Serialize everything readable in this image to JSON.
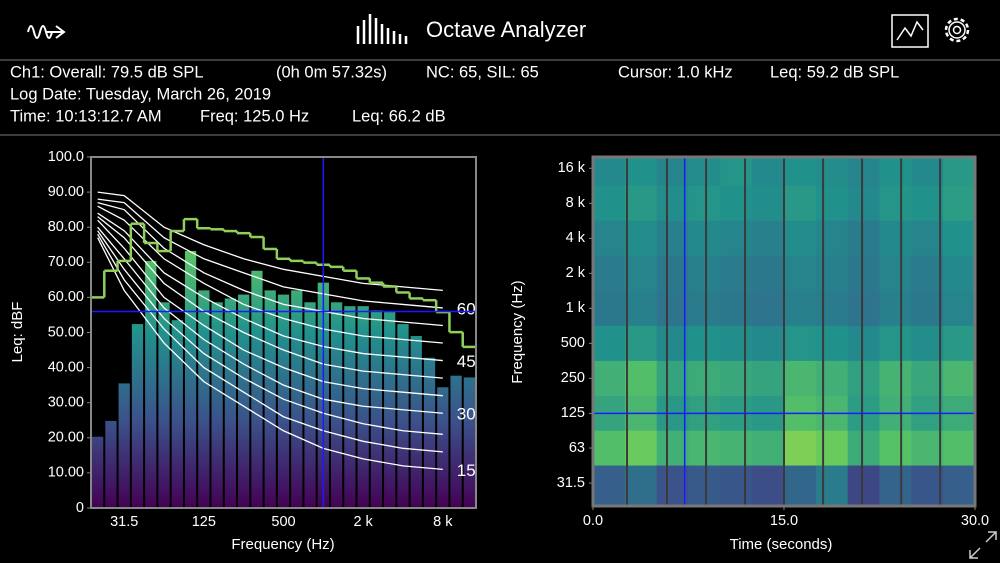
{
  "header": {
    "title": "Octave Analyzer"
  },
  "info": {
    "line1": [
      "Ch1:  Overall: 79.5  dB SPL",
      "(0h  0m 57.32s)",
      "NC: 65, SIL: 65",
      "Cursor: 1.0 kHz",
      "Leq: 59.2 dB SPL"
    ],
    "line2": [
      "Log Date: Tuesday, March 26, 2019"
    ],
    "line3": [
      "Time: 10:13:12.7 AM",
      "Freq: 125.0 Hz",
      "Leq: 66.2 dB"
    ]
  },
  "chart_data": [
    {
      "type": "bar",
      "xlabel": "Frequency (Hz)",
      "ylabel": "Leq: dBF",
      "categories": [
        null,
        null,
        "31.5",
        null,
        null,
        null,
        null,
        null,
        "125",
        null,
        null,
        null,
        null,
        null,
        "500",
        null,
        null,
        null,
        null,
        null,
        "2 k",
        null,
        null,
        null,
        null,
        null,
        "8 k",
        null,
        null
      ],
      "values": [
        20.3,
        24.8,
        35.5,
        52.4,
        70.4,
        58.6,
        53.5,
        73.2,
        62.0,
        58.6,
        59.7,
        60.8,
        67.6,
        62.0,
        60.8,
        62.0,
        58.6,
        64.2,
        58.6,
        57.5,
        57.5,
        56.3,
        55.8,
        52.4,
        49.0,
        42.8,
        34.4,
        37.7,
        37.2
      ],
      "bar_colors": [
        "#440154",
        "#3b528b",
        "#21918c",
        "#5ec962",
        "#a8e28a"
      ],
      "line": {
        "color": "#8fcf5a",
        "values": [
          60,
          67.6,
          70.4,
          81,
          75.5,
          73.2,
          78.9,
          82.3,
          79.7,
          79.4,
          78.9,
          78.3,
          77.2,
          73.8,
          71,
          70.4,
          69.9,
          69.3,
          68.7,
          67.6,
          65.4,
          64.2,
          63.1,
          61.4,
          59.7,
          59.2,
          55.8,
          50.1,
          45.9
        ]
      },
      "nc_curves": {
        "color": "#ffffff",
        "x": [
          0,
          2,
          5,
          8,
          11,
          14,
          17,
          20,
          23,
          26
        ],
        "series": [
          {
            "name": "15",
            "values": [
              77,
              62,
              47,
              36,
              29,
              22,
              17,
              14,
              12,
              11
            ]
          },
          {
            "values": [
              78,
              65,
              51,
              40,
              33,
              26,
              22,
              19,
              17,
              16
            ]
          },
          {
            "values": [
              79,
              68,
              54,
              44,
              37,
              31,
              27,
              24,
              22,
              21
            ]
          },
          {
            "name": "30",
            "values": [
              80,
              71,
              57,
              48,
              41,
              35,
              31,
              29,
              28,
              27
            ]
          },
          {
            "values": [
              82,
              74,
              60,
              52,
              45,
              40,
              36,
              34,
              33,
              32
            ]
          },
          {
            "values": [
              83,
              77,
              64,
              56,
              50,
              45,
              41,
              39,
              38,
              37
            ]
          },
          {
            "name": "45",
            "values": [
              84,
              79,
              67,
              60,
              54,
              49,
              46,
              44,
              43,
              42
            ]
          },
          {
            "values": [
              86,
              82,
              71,
              64,
              58,
              54,
              51,
              49,
              48,
              47
            ]
          },
          {
            "values": [
              87,
              85,
              74,
              67,
              62,
              58,
              56,
              54,
              53,
              52
            ]
          },
          {
            "name": "60",
            "values": [
              88,
              87,
              77,
              71,
              67,
              63,
              61,
              59,
              58,
              57
            ]
          },
          {
            "values": [
              90,
              89,
              80,
              75,
              71,
              68,
              66,
              64,
              63,
              62
            ]
          }
        ]
      },
      "cursor": {
        "x": 17,
        "y": 56,
        "color": "#1a1aff"
      },
      "ylim": [
        0,
        100
      ],
      "yticks": [
        0,
        {
          "value": 10,
          "label": "10.00"
        },
        {
          "value": 20,
          "label": "20.00"
        },
        {
          "value": 30,
          "label": "30.00"
        },
        {
          "value": 40,
          "label": "40.00"
        },
        {
          "value": 50,
          "label": "50.00"
        },
        {
          "value": 60,
          "label": "60.00"
        },
        {
          "value": 70,
          "label": "70.00"
        },
        {
          "value": 80,
          "label": "80.00"
        },
        {
          "value": 90,
          "label": "90.00"
        },
        {
          "value": 100,
          "label": "100.0"
        }
      ]
    },
    {
      "type": "heatmap",
      "xlabel": "Time (seconds)",
      "ylabel": "Frequency (Hz)",
      "xlim": [
        0,
        30
      ],
      "xticks": [
        {
          "value": 0,
          "label": "0.0"
        },
        {
          "value": 15,
          "label": "15.0"
        },
        {
          "value": 30,
          "label": "30.0"
        }
      ],
      "ylim": [
        20,
        20000
      ],
      "log_y": true,
      "yticks": [
        {
          "value": 16000,
          "label": "16 k"
        },
        {
          "value": 8000,
          "label": "8 k"
        },
        {
          "value": 4000,
          "label": "4 k"
        },
        {
          "value": 2000,
          "label": "2 k"
        },
        {
          "value": 1000,
          "label": "1 k"
        },
        500,
        250,
        125,
        63,
        31.5
      ],
      "x": [
        1.25,
        3.75,
        6.25,
        8.75,
        11.25,
        13.75,
        16.25,
        18.75,
        21.25,
        23.75,
        26.25,
        28.75
      ],
      "y": [
        16000,
        8000,
        4000,
        2000,
        1000,
        500,
        250,
        125,
        63,
        31.5
      ],
      "values": [
        [
          48,
          50,
          47,
          49,
          51,
          48,
          50,
          49,
          47,
          50,
          48,
          52
        ],
        [
          50,
          52,
          49,
          51,
          50,
          49,
          52,
          50,
          48,
          51,
          50,
          53
        ],
        [
          47,
          49,
          46,
          48,
          47,
          46,
          49,
          47,
          45,
          48,
          47,
          50
        ],
        [
          45,
          47,
          44,
          46,
          45,
          44,
          47,
          46,
          44,
          47,
          45,
          48
        ],
        [
          44,
          46,
          43,
          45,
          44,
          43,
          46,
          45,
          43,
          46,
          44,
          47
        ],
        [
          50,
          52,
          48,
          50,
          49,
          48,
          51,
          50,
          48,
          51,
          49,
          52
        ],
        [
          58,
          62,
          55,
          57,
          56,
          55,
          60,
          58,
          54,
          59,
          56,
          60
        ],
        [
          55,
          60,
          52,
          54,
          53,
          52,
          62,
          60,
          53,
          58,
          54,
          57
        ],
        [
          62,
          66,
          58,
          60,
          59,
          58,
          68,
          66,
          57,
          63,
          60,
          62
        ],
        [
          38,
          42,
          35,
          37,
          36,
          34,
          40,
          45,
          33,
          39,
          36,
          38
        ]
      ],
      "clim": [
        20,
        80
      ],
      "colormap": [
        "#440154",
        "#3b528b",
        "#21918c",
        "#5ec962",
        "#fde725"
      ],
      "segments": [
        2.67,
        5.81,
        8.88,
        11.94,
        15.0,
        18.07,
        21.13,
        24.2,
        27.26
      ],
      "segment_color": "#3a3a3a",
      "cursor": {
        "x": 7.2,
        "y": 125,
        "color": "#1a1aff"
      }
    }
  ]
}
